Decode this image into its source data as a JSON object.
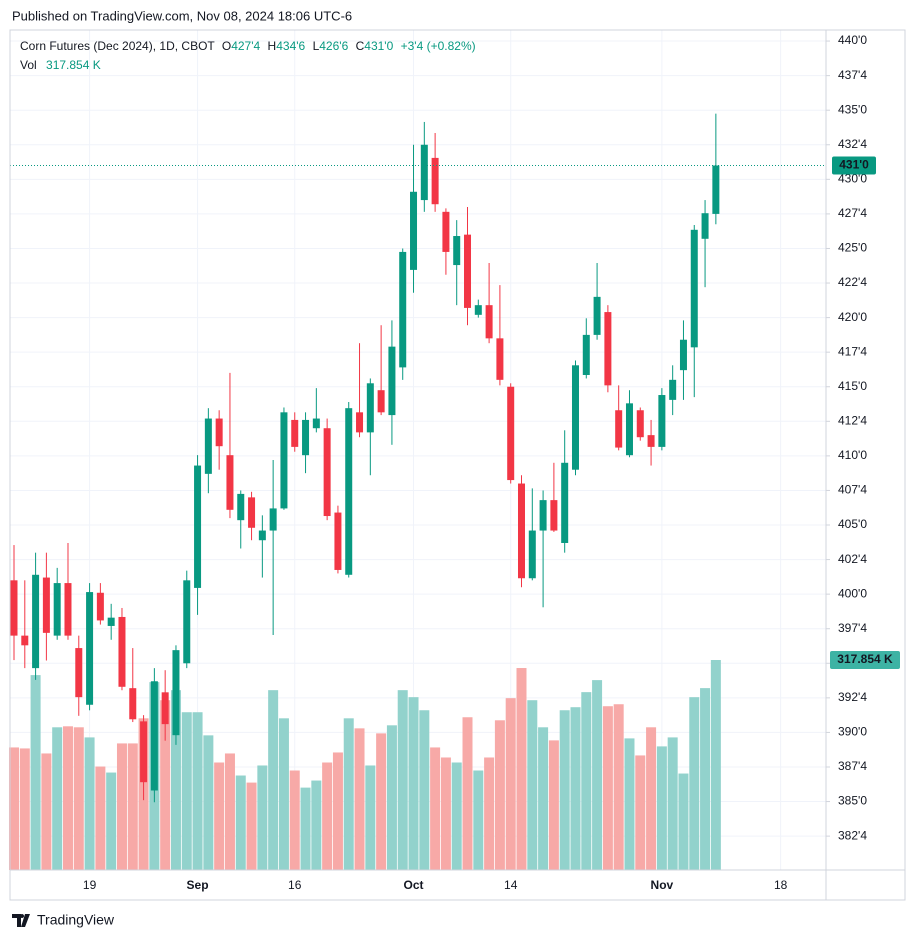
{
  "header": {
    "published": "Published on TradingView.com, Nov 08, 2024 18:06 UTC-6"
  },
  "footer": {
    "brand": "TradingView"
  },
  "chart_data": {
    "type": "candlestick",
    "title": "Corn Futures (Dec 2024), 1D, CBOT",
    "legend": [
      {
        "key": "O",
        "label": "427'4"
      },
      {
        "key": "H",
        "label": "434'6"
      },
      {
        "key": "L",
        "label": "426'6"
      },
      {
        "key": "C",
        "label": "431'0"
      }
    ],
    "change_label": "+3'4 (+0.82%)",
    "close_tag": "431'0",
    "up_color": "#089981",
    "down_color": "#f23645",
    "volume_up_color": "#92d2cc",
    "volume_down_color": "#f7a9a7",
    "grid": true,
    "x": [
      0,
      1,
      2,
      3,
      4,
      5,
      6,
      7,
      8,
      9,
      10,
      11,
      12,
      13,
      14,
      15,
      16,
      17,
      18,
      19,
      20,
      21,
      22,
      23,
      24,
      25,
      26,
      27,
      28,
      29,
      30,
      31,
      32,
      33,
      34,
      35,
      36,
      37,
      38,
      39,
      40,
      41,
      42,
      43,
      44,
      45,
      46,
      47,
      48,
      49,
      50,
      51,
      52,
      53,
      54,
      55,
      56,
      57,
      58,
      59,
      60,
      61,
      62,
      63,
      64,
      65
    ],
    "open": [
      401.0,
      397.0,
      394.65,
      401.2,
      397.0,
      400.8,
      396.1,
      392.0,
      400.1,
      397.7,
      398.35,
      393.2,
      390.8,
      385.8,
      392.9,
      389.8,
      395.0,
      400.45,
      408.7,
      412.7,
      410.05,
      405.35,
      407.0,
      403.9,
      404.6,
      406.2,
      412.6,
      410.05,
      412.0,
      412.0,
      405.9,
      401.4,
      413.15,
      411.7,
      414.75,
      412.95,
      416.4,
      423.45,
      428.5,
      431.55,
      427.65,
      423.8,
      426.0,
      420.2,
      420.9,
      418.5,
      415.0,
      408.0,
      401.15,
      404.6,
      406.8,
      403.7,
      409.0,
      415.85,
      418.75,
      420.4,
      413.3,
      410.05,
      413.3,
      411.5,
      410.65,
      414.05,
      416.2,
      417.85,
      425.7,
      427.5
    ],
    "high": [
      403.55,
      401.0,
      403.0,
      403.0,
      401.9,
      403.7,
      397.0,
      400.8,
      400.8,
      399.3,
      399.0,
      396.1,
      391.25,
      394.65,
      394.5,
      396.3,
      401.7,
      410.05,
      413.45,
      413.3,
      416.0,
      407.5,
      407.4,
      405.7,
      409.7,
      413.5,
      413.15,
      413.15,
      414.9,
      412.7,
      406.4,
      413.9,
      418.15,
      415.6,
      419.45,
      419.8,
      425.0,
      432.5,
      434.15,
      433.35,
      427.9,
      427.05,
      428.0,
      421.3,
      423.95,
      422.35,
      415.25,
      408.6,
      407.65,
      407.5,
      409.5,
      411.85,
      416.9,
      419.95,
      423.95,
      420.9,
      415.1,
      414.75,
      413.5,
      412.6,
      414.9,
      416.55,
      419.8,
      426.7,
      428.5,
      434.75
    ],
    "low": [
      395.23,
      394.65,
      393.8,
      395.2,
      396.7,
      396.7,
      391.2,
      391.6,
      397.8,
      396.7,
      393.05,
      390.75,
      385.1,
      384.95,
      389.4,
      389.1,
      394.65,
      398.5,
      407.3,
      409.0,
      405.5,
      403.3,
      403.9,
      401.2,
      397.05,
      406.1,
      410.3,
      408.75,
      411.7,
      405.35,
      401.5,
      401.2,
      411.35,
      408.6,
      412.95,
      410.8,
      415.5,
      421.8,
      427.65,
      427.65,
      423.1,
      420.9,
      419.45,
      420.0,
      418.15,
      415.1,
      408.0,
      400.5,
      401.0,
      399.05,
      404.5,
      403.0,
      408.6,
      415.6,
      418.4,
      414.6,
      410.4,
      409.9,
      411.1,
      409.3,
      410.4,
      412.95,
      414.05,
      414.25,
      422.2,
      426.75
    ],
    "close": [
      397.0,
      396.3,
      401.4,
      397.2,
      400.8,
      397.0,
      392.55,
      400.15,
      398.1,
      398.3,
      393.3,
      390.95,
      386.4,
      393.7,
      390.6,
      395.95,
      401.0,
      409.3,
      412.7,
      410.7,
      406.1,
      407.25,
      404.8,
      404.6,
      406.2,
      413.15,
      410.65,
      412.6,
      412.7,
      405.65,
      401.75,
      413.45,
      411.7,
      415.25,
      413.15,
      417.9,
      424.75,
      429.1,
      432.5,
      428.2,
      424.75,
      425.9,
      420.7,
      420.9,
      418.5,
      415.5,
      408.25,
      401.15,
      404.6,
      406.8,
      404.6,
      409.5,
      416.55,
      418.75,
      421.5,
      415.1,
      410.6,
      413.8,
      411.35,
      410.65,
      414.4,
      415.5,
      418.4,
      426.35,
      427.55,
      431.0
    ],
    "volume": {
      "name": "Vol",
      "axis": "y2",
      "values": [
        185.5,
        184.0,
        295.0,
        176.4,
        216.0,
        217.5,
        216.0,
        200.7,
        156.6,
        147.5,
        191.6,
        191.6,
        229.6,
        284.4,
        257.0,
        272.2,
        238.8,
        238.8,
        203.8,
        162.7,
        176.4,
        143.0,
        132.3,
        158.2,
        272.2,
        229.6,
        150.6,
        124.7,
        135.4,
        162.7,
        177.9,
        229.6,
        214.4,
        158.2,
        206.8,
        219.0,
        272.2,
        261.6,
        241.8,
        185.5,
        170.3,
        162.7,
        231.2,
        150.6,
        170.3,
        226.6,
        260.1,
        305.7,
        257.0,
        216.0,
        196.2,
        241.8,
        246.4,
        269.2,
        287.4,
        247.9,
        250.9,
        199.2,
        173.4,
        216.0,
        187.1,
        200.7,
        146.0,
        261.6,
        275.3,
        317.854
      ],
      "value_labels": [
        null,
        null,
        null,
        null,
        null,
        null,
        null,
        null,
        null,
        null,
        null,
        null,
        null,
        null,
        null,
        null,
        null,
        null,
        null,
        null,
        null,
        null,
        null,
        null,
        null,
        null,
        null,
        null,
        null,
        null,
        null,
        null,
        null,
        null,
        null,
        null,
        null,
        null,
        null,
        null,
        null,
        null,
        null,
        null,
        null,
        null,
        null,
        null,
        null,
        null,
        null,
        null,
        null,
        null,
        null,
        null,
        null,
        null,
        null,
        null,
        null,
        null,
        null,
        null,
        null,
        "317.854 K"
      ]
    },
    "xlim": [
      -0.37,
      75.2
    ],
    "xticks": [
      {
        "value": 7,
        "label": "19"
      },
      {
        "value": 17,
        "label": "Sep"
      },
      {
        "value": 26,
        "label": "16"
      },
      {
        "value": 37,
        "label": "Oct"
      },
      {
        "value": 46,
        "label": "14"
      },
      {
        "value": 60,
        "label": "Nov"
      },
      {
        "value": 71,
        "label": "18"
      }
    ],
    "ylim": [
      380.05,
      440.8
    ],
    "yticks": [
      {
        "value": 382.5,
        "label": "382'4"
      },
      {
        "value": 385,
        "label": "385'0"
      },
      {
        "value": 387.5,
        "label": "387'4"
      },
      {
        "value": 390,
        "label": "390'0"
      },
      {
        "value": 392.5,
        "label": "392'4"
      },
      {
        "value": 395,
        "label": "395'0"
      },
      {
        "value": 397.5,
        "label": "397'4"
      },
      {
        "value": 400,
        "label": "400'0"
      },
      {
        "value": 402.5,
        "label": "402'4"
      },
      {
        "value": 405,
        "label": "405'0"
      },
      {
        "value": 407.5,
        "label": "407'4"
      },
      {
        "value": 410,
        "label": "410'0"
      },
      {
        "value": 412.5,
        "label": "412'4"
      },
      {
        "value": 415,
        "label": "415'0"
      },
      {
        "value": 417.5,
        "label": "417'4"
      },
      {
        "value": 420,
        "label": "420'0"
      },
      {
        "value": 422.5,
        "label": "422'4"
      },
      {
        "value": 425,
        "label": "425'0"
      },
      {
        "value": 427.5,
        "label": "427'4"
      },
      {
        "value": 430,
        "label": "430'0"
      },
      {
        "value": 432.5,
        "label": "432'4"
      },
      {
        "value": 435,
        "label": "435'0"
      },
      {
        "value": 437.5,
        "label": "437'4"
      },
      {
        "value": 440,
        "label": "440'0"
      }
    ],
    "y2lim": [
      0,
      1271.4
    ]
  }
}
